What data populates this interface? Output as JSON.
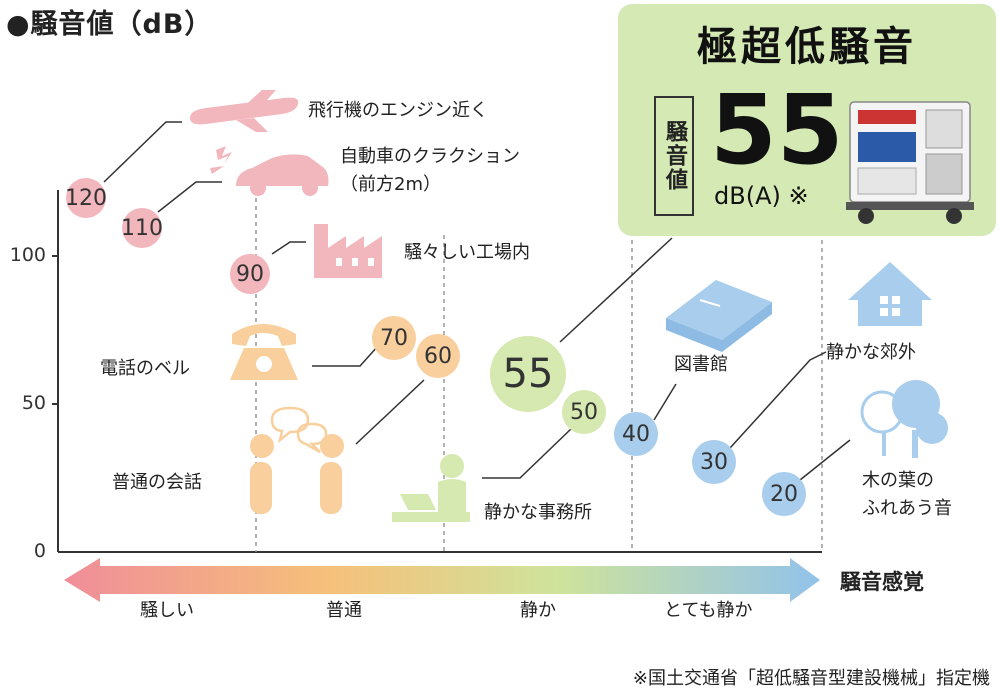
{
  "title": "●騒音値（dB）",
  "y_axis": {
    "ticks": [
      "100",
      "50",
      "0"
    ]
  },
  "items": [
    {
      "value": "120",
      "label": "飛行機のエンジン近く"
    },
    {
      "value": "110",
      "label_line1": "自動車のクラクション",
      "label_line2": "（前方2m）"
    },
    {
      "value": "90",
      "label": "騒々しい工場内"
    },
    {
      "value": "70",
      "label": "電話のベル"
    },
    {
      "value": "60",
      "label": "普通の会話"
    },
    {
      "value": "55"
    },
    {
      "value": "50",
      "label": "静かな事務所"
    },
    {
      "value": "40",
      "label": "図書館"
    },
    {
      "value": "30",
      "label": "静かな郊外"
    },
    {
      "value": "20",
      "label_line1": "木の葉の",
      "label_line2": "ふれあう音"
    }
  ],
  "noise_scale": {
    "labels": [
      "騒しい",
      "普通",
      "静か",
      "とても静か"
    ],
    "axis_title": "騒音感覚",
    "colors": [
      "#f08d99",
      "#f6c07a",
      "#cfe39b",
      "#92c2ea"
    ]
  },
  "panel": {
    "title": "極超低騒音",
    "vertical_label": "騒音値",
    "value": "55",
    "unit": "dB(A) ※"
  },
  "footnote": "※国土交通省「超低騒音型建設機械」指定機"
}
